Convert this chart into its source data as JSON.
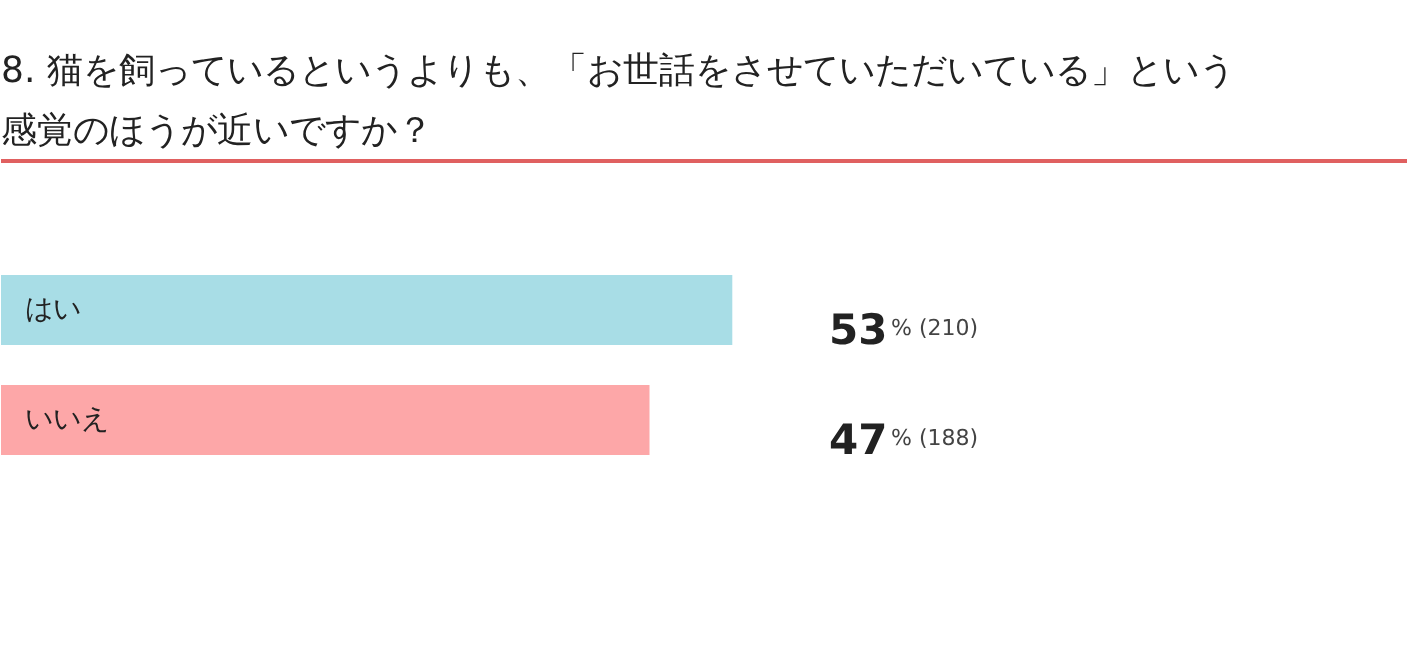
{
  "chart_data": {
    "type": "bar",
    "orientation": "horizontal",
    "title": "8. 猫を飼っているというよりも、「お世話をさせていただいている」という感覚のほうが近いですか？",
    "categories": [
      "はい",
      "いいえ"
    ],
    "values": [
      53,
      47
    ],
    "colors": [
      "#a8dde6",
      "#fda7a8"
    ],
    "value_labels": [
      "53% (210)",
      "47% (188)"
    ]
  }
}
